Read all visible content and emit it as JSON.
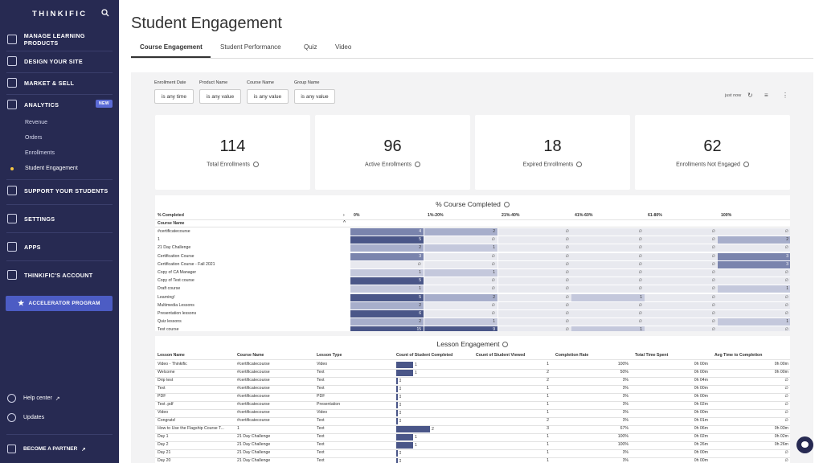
{
  "sidebar": {
    "logo": "THINKIFIC",
    "items": [
      {
        "label": "MANAGE LEARNING PRODUCTS",
        "icon": "layers-icon"
      },
      {
        "label": "DESIGN YOUR SITE",
        "icon": "layout-icon"
      },
      {
        "label": "MARKET & SELL",
        "icon": "chart-icon"
      },
      {
        "label": "ANALYTICS",
        "icon": "analytics-icon",
        "badge": "NEW"
      },
      {
        "label": "SUPPORT YOUR STUDENTS",
        "icon": "people-icon"
      },
      {
        "label": "SETTINGS",
        "icon": "gear-icon"
      },
      {
        "label": "APPS",
        "icon": "plug-icon"
      },
      {
        "label": "THINKIFIC'S ACCOUNT",
        "icon": "account-icon"
      }
    ],
    "sub_items": [
      "Revenue",
      "Orders",
      "Enrollments",
      "Student Engagement"
    ],
    "accelerator": "ACCELERATOR PROGRAM",
    "help": "Help center",
    "updates": "Updates",
    "partner": "BECOME A PARTNER"
  },
  "page": {
    "title": "Student Engagement",
    "tabs": [
      "Course Engagement",
      "Student Performance",
      "Quiz",
      "Video"
    ]
  },
  "filters": [
    {
      "label": "Enrollment Date",
      "value": "is any time"
    },
    {
      "label": "Product Name",
      "value": "is any value"
    },
    {
      "label": "Course Name",
      "value": "is any value"
    },
    {
      "label": "Group Name",
      "value": "is any value"
    }
  ],
  "toolbar": {
    "refresh_text": "just now"
  },
  "kpis": [
    {
      "value": "114",
      "label": "Total Enrollments"
    },
    {
      "value": "96",
      "label": "Active Enrollments"
    },
    {
      "value": "18",
      "label": "Expired Enrollments"
    },
    {
      "value": "62",
      "label": "Enrollments Not Engaged"
    }
  ],
  "completed": {
    "title": "% Course Completed",
    "pct_header": "% Completed",
    "name_header": "Course Name",
    "columns": [
      "0%",
      "1%-20%",
      "21%-40%",
      "41%-60%",
      "61-80%",
      "100%"
    ],
    "rows": [
      {
        "name": "#certificatecourse",
        "vals": [
          "4",
          "2",
          "∅",
          "∅",
          "∅",
          "∅"
        ]
      },
      {
        "name": "1",
        "vals": [
          "5",
          "∅",
          "∅",
          "∅",
          "∅",
          "2"
        ]
      },
      {
        "name": "21 Day Challenge",
        "vals": [
          "2",
          "1",
          "∅",
          "∅",
          "∅",
          "∅"
        ]
      },
      {
        "name": "Certification Course",
        "vals": [
          "3",
          "∅",
          "∅",
          "∅",
          "∅",
          "3"
        ]
      },
      {
        "name": "Certification Course - Fall 2021",
        "vals": [
          "∅",
          "∅",
          "∅",
          "∅",
          "∅",
          "3"
        ]
      },
      {
        "name": "Copy of CA Manager",
        "vals": [
          "1",
          "1",
          "∅",
          "∅",
          "∅",
          "∅"
        ]
      },
      {
        "name": "Copy of Test course",
        "vals": [
          "5",
          "∅",
          "∅",
          "∅",
          "∅",
          "∅"
        ]
      },
      {
        "name": "Draft course",
        "vals": [
          "1",
          "∅",
          "∅",
          "∅",
          "∅",
          "1"
        ]
      },
      {
        "name": "Learning!",
        "vals": [
          "5",
          "2",
          "∅",
          "1",
          "∅",
          "∅"
        ]
      },
      {
        "name": "Multimedia Lessons",
        "vals": [
          "2",
          "∅",
          "∅",
          "∅",
          "∅",
          "∅"
        ]
      },
      {
        "name": "Presentation lessons",
        "vals": [
          "6",
          "∅",
          "∅",
          "∅",
          "∅",
          "∅"
        ]
      },
      {
        "name": "Quiz lessons",
        "vals": [
          "2",
          "1",
          "∅",
          "∅",
          "∅",
          "1"
        ]
      },
      {
        "name": "Test course",
        "vals": [
          "15",
          "9",
          "∅",
          "1",
          "∅",
          "∅"
        ]
      }
    ]
  },
  "lessons": {
    "title": "Lesson Engagement",
    "headers": [
      "Lesson Name",
      "Course Name",
      "Lesson Type",
      "Count of Student Completed",
      "Count of Student Viewed",
      "Completion Rate",
      "Total Time Spent",
      "Avg Time to Completion"
    ],
    "rows": [
      {
        "lesson": "Video - Thinkific",
        "course": "#certificatecourse",
        "type": "Video",
        "completed": 1,
        "viewed": "1",
        "rate": "100%",
        "total": "0h 00m",
        "avg": "0h 00m"
      },
      {
        "lesson": "Welcome",
        "course": "#certificatecourse",
        "type": "Text",
        "completed": 1,
        "viewed": "2",
        "rate": "50%",
        "total": "0h 00m",
        "avg": "0h 00m"
      },
      {
        "lesson": "Drip test",
        "course": "#certificatecourse",
        "type": "Text",
        "completed": 0,
        "viewed": "2",
        "rate": "0%",
        "total": "0h 04m",
        "avg": "∅"
      },
      {
        "lesson": "Text",
        "course": "#certificatecourse",
        "type": "Text",
        "completed": 0,
        "viewed": "1",
        "rate": "0%",
        "total": "0h 00m",
        "avg": "∅"
      },
      {
        "lesson": "PDF",
        "course": "#certificatecourse",
        "type": "PDF",
        "completed": 0,
        "viewed": "1",
        "rate": "0%",
        "total": "0h 00m",
        "avg": "∅"
      },
      {
        "lesson": "Test .pdf",
        "course": "#certificatecourse",
        "type": "Presentation",
        "completed": 0,
        "viewed": "1",
        "rate": "0%",
        "total": "0h 02m",
        "avg": "∅"
      },
      {
        "lesson": "Video",
        "course": "#certificatecourse",
        "type": "Video",
        "completed": 0,
        "viewed": "1",
        "rate": "0%",
        "total": "0h 00m",
        "avg": "∅"
      },
      {
        "lesson": "Congrats!",
        "course": "#certificatecourse",
        "type": "Text",
        "completed": 0,
        "viewed": "2",
        "rate": "0%",
        "total": "0h 01m",
        "avg": "∅"
      },
      {
        "lesson": "How to Use the Flagship Course T...",
        "course": "1",
        "type": "Text",
        "completed": 2,
        "viewed": "3",
        "rate": "67%",
        "total": "0h 06m",
        "avg": "0h 03m"
      },
      {
        "lesson": "Day 1",
        "course": "21 Day Challenge",
        "type": "Text",
        "completed": 1,
        "viewed": "1",
        "rate": "100%",
        "total": "0h 02m",
        "avg": "0h 02m"
      },
      {
        "lesson": "Day 2",
        "course": "21 Day Challenge",
        "type": "Text",
        "completed": 1,
        "viewed": "1",
        "rate": "100%",
        "total": "0h 26m",
        "avg": "0h 26m"
      },
      {
        "lesson": "Day 21",
        "course": "21 Day Challenge",
        "type": "Text",
        "completed": 0,
        "viewed": "1",
        "rate": "0%",
        "total": "0h 00m",
        "avg": "∅"
      },
      {
        "lesson": "Day 20",
        "course": "21 Day Challenge",
        "type": "Text",
        "completed": 0,
        "viewed": "1",
        "rate": "0%",
        "total": "0h 00m",
        "avg": "∅"
      }
    ]
  }
}
